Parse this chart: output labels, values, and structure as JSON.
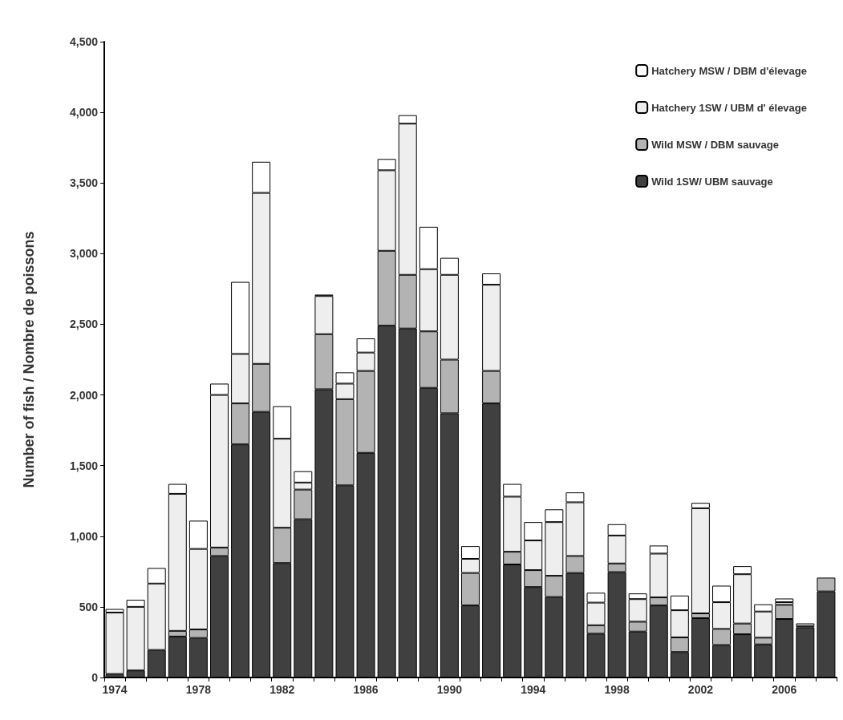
{
  "chart_data": {
    "type": "bar",
    "stacked": true,
    "ylabel": "Number of fish / Nombre de poissons",
    "categories": [
      "1974",
      null,
      null,
      null,
      "1978",
      null,
      null,
      null,
      "1982",
      null,
      null,
      null,
      "1986",
      null,
      null,
      null,
      "1990",
      null,
      null,
      null,
      "1994",
      null,
      null,
      null,
      "1998",
      null,
      null,
      null,
      "2002",
      null,
      null,
      null,
      "2006",
      null,
      null
    ],
    "series": [
      {
        "name": "Wild 1SW/ UBM sauvage",
        "color": "#404040",
        "values": [
          25,
          50,
          195,
          290,
          280,
          860,
          1650,
          1880,
          810,
          1120,
          2040,
          1360,
          1590,
          2490,
          2470,
          2050,
          1870,
          510,
          1940,
          800,
          640,
          570,
          740,
          310,
          746,
          325,
          510,
          180,
          420,
          230,
          306,
          234,
          414,
          355,
          609
        ]
      },
      {
        "name": "Wild MSW / DBM sauvage",
        "color": "#b3b3b3",
        "values": [
          null,
          null,
          null,
          40,
          60,
          60,
          290,
          340,
          250,
          210,
          390,
          610,
          580,
          530,
          380,
          400,
          380,
          230,
          230,
          90,
          120,
          150,
          120,
          60,
          61,
          70,
          57,
          104,
          34,
          114,
          76,
          48,
          100,
          10,
          98
        ]
      },
      {
        "name": "Hatchery 1SW / UBM d' élevage",
        "color": "#eeeeee",
        "values": [
          435,
          450,
          470,
          970,
          570,
          1080,
          350,
          1210,
          630,
          50,
          270,
          110,
          130,
          570,
          1070,
          440,
          600,
          100,
          610,
          390,
          210,
          380,
          380,
          160,
          198,
          160,
          310,
          192,
          744,
          189,
          349,
          185,
          19,
          null,
          null
        ]
      },
      {
        "name": "Hatchery MSW / DBM d'élevage",
        "color": "#ffffff",
        "values": [
          25,
          50,
          110,
          70,
          200,
          80,
          510,
          220,
          230,
          80,
          10,
          80,
          100,
          80,
          60,
          300,
          120,
          90,
          80,
          90,
          130,
          90,
          70,
          70,
          80,
          40,
          57,
          104,
          38,
          117,
          57,
          51,
          26,
          18,
          null
        ]
      }
    ],
    "ylim": [
      0,
      4500
    ],
    "yticks": [
      0,
      500,
      {
        "value": 1000,
        "label": "1,000"
      },
      {
        "value": 1500,
        "label": "1,500"
      },
      {
        "value": 2000,
        "label": "2,000"
      },
      {
        "value": 2500,
        "label": "2,500"
      },
      {
        "value": 3000,
        "label": "3,000"
      },
      {
        "value": 3500,
        "label": "3,500"
      },
      {
        "value": 4000,
        "label": "4,000"
      },
      {
        "value": 4500,
        "label": "4,500"
      }
    ],
    "grid": false,
    "legend": "top right"
  }
}
